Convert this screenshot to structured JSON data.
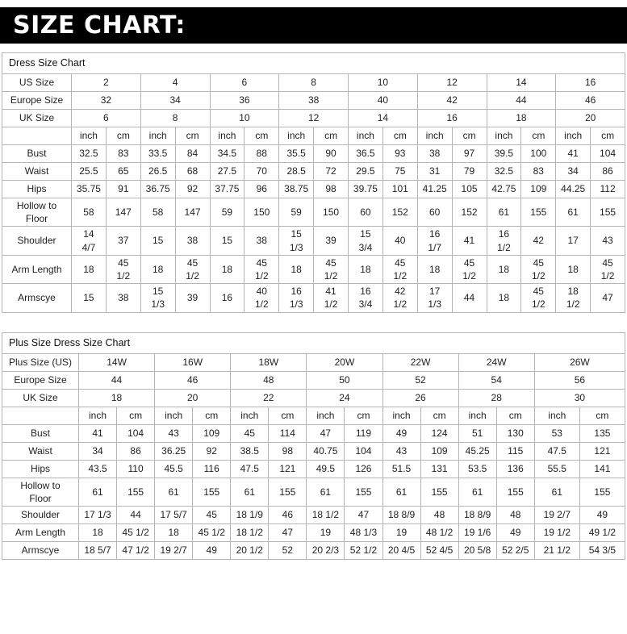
{
  "banner": {
    "title": "SIZE CHART:"
  },
  "units": [
    "inch",
    "cm"
  ],
  "tables": [
    {
      "title": "Dress Size Chart",
      "size_rows": [
        {
          "label": "US Size",
          "values": [
            "2",
            "4",
            "6",
            "8",
            "10",
            "12",
            "14",
            "16"
          ]
        },
        {
          "label": "Europe Size",
          "values": [
            "32",
            "34",
            "36",
            "38",
            "40",
            "42",
            "44",
            "46"
          ]
        },
        {
          "label": "UK Size",
          "values": [
            "6",
            "8",
            "10",
            "12",
            "14",
            "16",
            "18",
            "20"
          ]
        }
      ],
      "measurement_rows": [
        {
          "label": "Bust",
          "values": [
            "32.5",
            "83",
            "33.5",
            "84",
            "34.5",
            "88",
            "35.5",
            "90",
            "36.5",
            "93",
            "38",
            "97",
            "39.5",
            "100",
            "41",
            "104"
          ]
        },
        {
          "label": "Waist",
          "values": [
            "25.5",
            "65",
            "26.5",
            "68",
            "27.5",
            "70",
            "28.5",
            "72",
            "29.5",
            "75",
            "31",
            "79",
            "32.5",
            "83",
            "34",
            "86"
          ]
        },
        {
          "label": "Hips",
          "values": [
            "35.75",
            "91",
            "36.75",
            "92",
            "37.75",
            "96",
            "38.75",
            "98",
            "39.75",
            "101",
            "41.25",
            "105",
            "42.75",
            "109",
            "44.25",
            "112"
          ]
        },
        {
          "label": "Hollow to\nFloor",
          "values": [
            "58",
            "147",
            "58",
            "147",
            "59",
            "150",
            "59",
            "150",
            "60",
            "152",
            "60",
            "152",
            "61",
            "155",
            "61",
            "155"
          ]
        },
        {
          "label": "Shoulder",
          "values": [
            "14 4/7",
            "37",
            "15",
            "38",
            "15",
            "38",
            "15 1/3",
            "39",
            "15 3/4",
            "40",
            "16 1/7",
            "41",
            "16 1/2",
            "42",
            "17",
            "43"
          ]
        },
        {
          "label": "Arm Length",
          "values": [
            "18",
            "45 1/2",
            "18",
            "45 1/2",
            "18",
            "45 1/2",
            "18",
            "45 1/2",
            "18",
            "45 1/2",
            "18",
            "45 1/2",
            "18",
            "45 1/2",
            "18",
            "45 1/2"
          ]
        },
        {
          "label": "Armscye",
          "values": [
            "15",
            "38",
            "15 1/3",
            "39",
            "16",
            "40 1/2",
            "16 1/3",
            "41 1/2",
            "16 3/4",
            "42 1/2",
            "17 1/3",
            "44",
            "18",
            "45 1/2",
            "18 1/2",
            "47"
          ]
        }
      ]
    },
    {
      "title": "Plus Size Dress Size Chart",
      "size_rows": [
        {
          "label": "Plus Size (US)",
          "values": [
            "14W",
            "16W",
            "18W",
            "20W",
            "22W",
            "24W",
            "26W"
          ]
        },
        {
          "label": "Europe Size",
          "values": [
            "44",
            "46",
            "48",
            "50",
            "52",
            "54",
            "56"
          ]
        },
        {
          "label": "UK Size",
          "values": [
            "18",
            "20",
            "22",
            "24",
            "26",
            "28",
            "30"
          ]
        }
      ],
      "measurement_rows": [
        {
          "label": "Bust",
          "values": [
            "41",
            "104",
            "43",
            "109",
            "45",
            "114",
            "47",
            "119",
            "49",
            "124",
            "51",
            "130",
            "53",
            "135"
          ]
        },
        {
          "label": "Waist",
          "values": [
            "34",
            "86",
            "36.25",
            "92",
            "38.5",
            "98",
            "40.75",
            "104",
            "43",
            "109",
            "45.25",
            "115",
            "47.5",
            "121"
          ]
        },
        {
          "label": "Hips",
          "values": [
            "43.5",
            "110",
            "45.5",
            "116",
            "47.5",
            "121",
            "49.5",
            "126",
            "51.5",
            "131",
            "53.5",
            "136",
            "55.5",
            "141"
          ]
        },
        {
          "label": "Hollow to\nFloor",
          "values": [
            "61",
            "155",
            "61",
            "155",
            "61",
            "155",
            "61",
            "155",
            "61",
            "155",
            "61",
            "155",
            "61",
            "155"
          ]
        },
        {
          "label": "Shoulder",
          "values": [
            "17 1/3",
            "44",
            "17 5/7",
            "45",
            "18 1/9",
            "46",
            "18 1/2",
            "47",
            "18 8/9",
            "48",
            "18 8/9",
            "48",
            "19 2/7",
            "49"
          ]
        },
        {
          "label": "Arm Length",
          "values": [
            "18",
            "45 1/2",
            "18",
            "45 1/2",
            "18 1/2",
            "47",
            "19",
            "48 1/3",
            "19",
            "48 1/2",
            "19 1/6",
            "49",
            "19 1/2",
            "49 1/2"
          ]
        },
        {
          "label": "Armscye",
          "values": [
            "18 5/7",
            "47 1/2",
            "19 2/7",
            "49",
            "20 1/2",
            "52",
            "20 2/3",
            "52 1/2",
            "20 4/5",
            "52 4/5",
            "20 5/8",
            "52 2/5",
            "21 1/2",
            "54 3/5"
          ]
        }
      ]
    }
  ]
}
